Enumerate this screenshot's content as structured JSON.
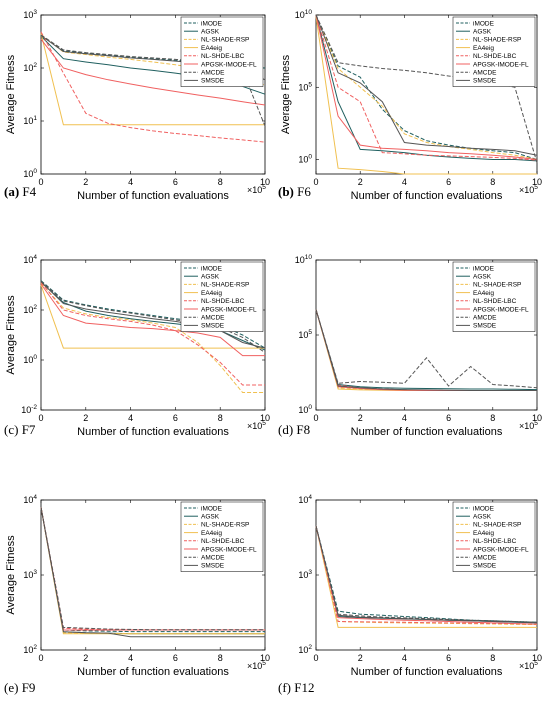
{
  "legend_entries": [
    "iMODE",
    "AGSK",
    "NL-SHADE-RSP",
    "EA4eig",
    "NL-SHDE-LBC",
    "APGSK-IMODE-FL",
    "AMCDE",
    "SMSDE"
  ],
  "series_styles": [
    {
      "name": "iMODE",
      "color": "#1f5f5f",
      "dash": "4,2"
    },
    {
      "name": "AGSK",
      "color": "#1f5f5f",
      "dash": ""
    },
    {
      "name": "NL-SHADE-RSP",
      "color": "#f0c050",
      "dash": "4,2"
    },
    {
      "name": "EA4eig",
      "color": "#f0c050",
      "dash": ""
    },
    {
      "name": "NL-SHDE-LBC",
      "color": "#f06060",
      "dash": "4,2"
    },
    {
      "name": "APGSK-IMODE-FL",
      "color": "#f06060",
      "dash": ""
    },
    {
      "name": "AMCDE",
      "color": "#555555",
      "dash": "4,2"
    },
    {
      "name": "SMSDE",
      "color": "#555555",
      "dash": ""
    }
  ],
  "chart_data": [
    {
      "type": "line",
      "caption_letter": "(a)",
      "caption_func": "F4",
      "xlabel": "Number of function evaluations",
      "ylabel": "Average Fitness",
      "x_multiplier": "×10",
      "x_multiplier_exp": "5",
      "xlim": [
        0,
        10
      ],
      "ylim_log10": [
        0,
        3
      ],
      "ytick_exps": [
        0,
        1,
        2,
        3
      ],
      "legend_position": "top-right",
      "x": [
        0,
        1,
        2,
        3,
        4,
        5,
        6,
        7,
        8,
        9,
        10
      ],
      "series": [
        {
          "name": "iMODE",
          "values": [
            420,
            210,
            190,
            175,
            160,
            150,
            140,
            130,
            120,
            110,
            100
          ]
        },
        {
          "name": "AGSK",
          "values": [
            400,
            150,
            130,
            115,
            100,
            90,
            80,
            70,
            60,
            45,
            32
          ]
        },
        {
          "name": "NL-SHADE-RSP",
          "values": [
            430,
            200,
            180,
            160,
            145,
            130,
            115,
            100,
            85,
            60,
            48
          ]
        },
        {
          "name": "EA4eig",
          "values": [
            450,
            8.5,
            8.5,
            8.5,
            8.5,
            8.5,
            8.5,
            8.5,
            8.5,
            8.5,
            8.5
          ]
        },
        {
          "name": "NL-SHDE-LBC",
          "values": [
            480,
            80,
            14,
            9,
            7.5,
            6.5,
            5.8,
            5.3,
            4.8,
            4.4,
            4
          ]
        },
        {
          "name": "APGSK-IMODE-FL",
          "values": [
            350,
            100,
            75,
            60,
            50,
            42,
            36,
            31,
            27,
            23,
            20
          ]
        },
        {
          "name": "AMCDE",
          "values": [
            420,
            220,
            195,
            180,
            165,
            155,
            145,
            135,
            120,
            90,
            8
          ]
        },
        {
          "name": "SMSDE",
          "values": [
            410,
            205,
            185,
            170,
            155,
            145,
            135,
            125,
            115,
            95,
            60
          ]
        }
      ]
    },
    {
      "type": "line",
      "caption_letter": "(b)",
      "caption_func": "F6",
      "xlabel": "Number of function evaluations",
      "ylabel": "Average Fitness",
      "x_multiplier": "×10",
      "x_multiplier_exp": "5",
      "xlim": [
        0,
        10
      ],
      "ylim_log10": [
        -1,
        10
      ],
      "ytick_exps": [
        0,
        5,
        10
      ],
      "legend_position": "top-right",
      "x": [
        0,
        1,
        2,
        3,
        4,
        5,
        6,
        7,
        8,
        9,
        10
      ],
      "series": [
        {
          "name": "iMODE",
          "values": [
            10000000000.0,
            3000000.0,
            500000.0,
            3000.0,
            100,
            20,
            10,
            6,
            4,
            3,
            1
          ]
        },
        {
          "name": "AGSK",
          "values": [
            10000000000.0,
            10000.0,
            5,
            4,
            3,
            2,
            1.5,
            1.2,
            1,
            1,
            0.8
          ]
        },
        {
          "name": "NL-SHADE-RSP",
          "values": [
            10000000000.0,
            2000000.0,
            100000.0,
            5000.0,
            60,
            15,
            8,
            5,
            3,
            2,
            1
          ]
        },
        {
          "name": "EA4eig",
          "values": [
            8000000000.0,
            0.25,
            0.2,
            0.15,
            0.1,
            0.1,
            0.1,
            0.1,
            0.1,
            0.1,
            0.1
          ]
        },
        {
          "name": "NL-SHDE-LBC",
          "values": [
            10000000000.0,
            100000.0,
            10000.0,
            3,
            2.5,
            2,
            1.8,
            1.6,
            1.4,
            1.2,
            0.9
          ]
        },
        {
          "name": "APGSK-IMODE-FL",
          "values": [
            10000000000.0,
            1000.0,
            10,
            6,
            5,
            4,
            3,
            2.5,
            2,
            1.5,
            1
          ]
        },
        {
          "name": "AMCDE",
          "values": [
            10000000000.0,
            5000000.0,
            3000000.0,
            2000000.0,
            1500000.0,
            1000000.0,
            600000.0,
            400000.0,
            200000.0,
            100000.0,
            0.6
          ]
        },
        {
          "name": "SMSDE",
          "values": [
            10000000000.0,
            1000000.0,
            200000.0,
            10000.0,
            15,
            10,
            8,
            6,
            5,
            4,
            2
          ]
        }
      ]
    },
    {
      "type": "line",
      "caption_letter": "(c)",
      "caption_func": "F7",
      "xlabel": "Number of function evaluations",
      "ylabel": "Average Fitness",
      "x_multiplier": "×10",
      "x_multiplier_exp": "5",
      "xlim": [
        0,
        10
      ],
      "ylim_log10": [
        -2,
        4
      ],
      "ytick_exps": [
        -2,
        0,
        2,
        4
      ],
      "legend_position": "top-right",
      "x": [
        0,
        1,
        2,
        3,
        4,
        5,
        6,
        7,
        8,
        9,
        10
      ],
      "series": [
        {
          "name": "iMODE",
          "values": [
            1500,
            250,
            160,
            110,
            80,
            60,
            45,
            35,
            25,
            10,
            3
          ]
        },
        {
          "name": "AGSK",
          "values": [
            1300,
            200,
            90,
            60,
            45,
            35,
            28,
            22,
            15,
            6,
            2.5
          ]
        },
        {
          "name": "NL-SHADE-RSP",
          "values": [
            1200,
            120,
            70,
            50,
            40,
            30,
            20,
            5,
            0.6,
            0.05,
            0.05
          ]
        },
        {
          "name": "EA4eig",
          "values": [
            1000,
            3,
            3,
            3,
            3,
            3,
            3,
            3,
            3,
            3,
            3
          ]
        },
        {
          "name": "NL-SHDE-LBC",
          "values": [
            1300,
            100,
            60,
            45,
            35,
            25,
            15,
            4,
            0.8,
            0.1,
            0.1
          ]
        },
        {
          "name": "APGSK-IMODE-FL",
          "values": [
            1100,
            60,
            30,
            25,
            20,
            18,
            15,
            12,
            8,
            1.5,
            1.5
          ]
        },
        {
          "name": "AMCDE",
          "values": [
            1400,
            230,
            150,
            100,
            75,
            55,
            40,
            30,
            20,
            8,
            2
          ]
        },
        {
          "name": "SMSDE",
          "values": [
            1350,
            180,
            110,
            80,
            60,
            45,
            35,
            25,
            15,
            5,
            3
          ]
        }
      ]
    },
    {
      "type": "line",
      "caption_letter": "(d)",
      "caption_func": "F8",
      "xlabel": "Number of function evaluations",
      "ylabel": "",
      "x_multiplier": "×10",
      "x_multiplier_exp": "5",
      "xlim": [
        0,
        10
      ],
      "ylim_log10": [
        0,
        10
      ],
      "ytick_exps": [
        0,
        5,
        10
      ],
      "legend_position": "top-right",
      "x": [
        0,
        1,
        2,
        3,
        4,
        5,
        6,
        7,
        8,
        9,
        10
      ],
      "series": [
        {
          "name": "iMODE",
          "values": [
            5000000.0,
            40,
            30,
            25,
            22,
            21,
            20,
            20,
            20,
            20,
            20
          ]
        },
        {
          "name": "AGSK",
          "values": [
            5000000.0,
            50,
            35,
            30,
            28,
            27,
            26,
            25,
            25,
            24,
            23
          ]
        },
        {
          "name": "NL-SHADE-RSP",
          "values": [
            5000000.0,
            30,
            25,
            22,
            21,
            20,
            20,
            20,
            20,
            20,
            20
          ]
        },
        {
          "name": "EA4eig",
          "values": [
            5000000.0,
            25,
            22,
            21,
            20,
            20,
            20,
            20,
            20,
            20,
            20
          ]
        },
        {
          "name": "NL-SHDE-LBC",
          "values": [
            5000000.0,
            45,
            30,
            25,
            22,
            21,
            20,
            20,
            20,
            20,
            20
          ]
        },
        {
          "name": "APGSK-IMODE-FL",
          "values": [
            5000000.0,
            35,
            27,
            23,
            21,
            20,
            20,
            20,
            20,
            20,
            20
          ]
        },
        {
          "name": "AMCDE",
          "values": [
            5000000.0,
            60,
            80,
            70,
            60,
            3000.0,
            40,
            800,
            50,
            40,
            30
          ]
        },
        {
          "name": "SMSDE",
          "values": [
            5000000.0,
            40,
            30,
            25,
            23,
            22,
            21,
            20,
            20,
            20,
            20
          ]
        }
      ]
    },
    {
      "type": "line",
      "caption_letter": "(e)",
      "caption_func": "F9",
      "xlabel": "Number of function evaluations",
      "ylabel": "Average Fitness",
      "x_multiplier": "×10",
      "x_multiplier_exp": "5",
      "xlim": [
        0,
        10
      ],
      "ylim_log10": [
        2,
        4
      ],
      "ytick_exps": [
        2,
        3,
        4
      ],
      "legend_position": "top-right",
      "x": [
        0,
        1,
        2,
        3,
        4,
        5,
        6,
        7,
        8,
        9,
        10
      ],
      "series": [
        {
          "name": "iMODE",
          "values": [
            8000,
            185,
            180,
            178,
            176,
            176,
            176,
            176,
            176,
            176,
            176
          ]
        },
        {
          "name": "AGSK",
          "values": [
            8000,
            175,
            170,
            168,
            165,
            165,
            165,
            165,
            165,
            165,
            165
          ]
        },
        {
          "name": "NL-SHADE-RSP",
          "values": [
            8000,
            170,
            168,
            166,
            165,
            165,
            165,
            165,
            165,
            165,
            165
          ]
        },
        {
          "name": "EA4eig",
          "values": [
            8000,
            165,
            165,
            165,
            165,
            165,
            165,
            165,
            165,
            165,
            165
          ]
        },
        {
          "name": "NL-SHDE-LBC",
          "values": [
            8000,
            195,
            190,
            188,
            186,
            186,
            186,
            186,
            186,
            186,
            186
          ]
        },
        {
          "name": "APGSK-IMODE-FL",
          "values": [
            8000,
            185,
            185,
            185,
            185,
            185,
            185,
            185,
            185,
            185,
            185
          ]
        },
        {
          "name": "AMCDE",
          "values": [
            8000,
            200,
            195,
            190,
            188,
            186,
            186,
            186,
            186,
            186,
            186
          ]
        },
        {
          "name": "SMSDE",
          "values": [
            8000,
            175,
            170,
            168,
            150,
            150,
            150,
            150,
            150,
            150,
            150
          ]
        }
      ]
    },
    {
      "type": "line",
      "caption_letter": "(f)",
      "caption_func": "F12",
      "xlabel": "Number of function evaluations",
      "ylabel": "",
      "x_multiplier": "×10",
      "x_multiplier_exp": "5",
      "xlim": [
        0,
        10
      ],
      "ylim_log10": [
        2,
        4
      ],
      "ytick_exps": [
        2,
        3,
        4
      ],
      "legend_position": "top-right",
      "x": [
        0,
        1,
        2,
        3,
        4,
        5,
        6,
        7,
        8,
        9,
        10
      ],
      "series": [
        {
          "name": "iMODE",
          "values": [
            4500,
            330,
            300,
            290,
            280,
            270,
            260,
            250,
            245,
            240,
            235
          ]
        },
        {
          "name": "AGSK",
          "values": [
            4500,
            280,
            270,
            265,
            260,
            255,
            250,
            245,
            240,
            235,
            230
          ]
        },
        {
          "name": "NL-SHADE-RSP",
          "values": [
            4500,
            240,
            235,
            232,
            230,
            228,
            226,
            224,
            222,
            220,
            218
          ]
        },
        {
          "name": "EA4eig",
          "values": [
            4500,
            200,
            200,
            200,
            200,
            200,
            200,
            200,
            200,
            200,
            200
          ]
        },
        {
          "name": "NL-SHDE-LBC",
          "values": [
            4500,
            240,
            238,
            236,
            234,
            232,
            230,
            228,
            226,
            224,
            222
          ]
        },
        {
          "name": "APGSK-IMODE-FL",
          "values": [
            4500,
            270,
            262,
            255,
            250,
            245,
            240,
            235,
            230,
            225,
            220
          ]
        },
        {
          "name": "AMCDE",
          "values": [
            4500,
            300,
            285,
            275,
            268,
            262,
            255,
            250,
            245,
            240,
            235
          ]
        },
        {
          "name": "SMSDE",
          "values": [
            4500,
            290,
            275,
            268,
            262,
            256,
            250,
            245,
            240,
            236,
            232
          ]
        }
      ]
    }
  ]
}
